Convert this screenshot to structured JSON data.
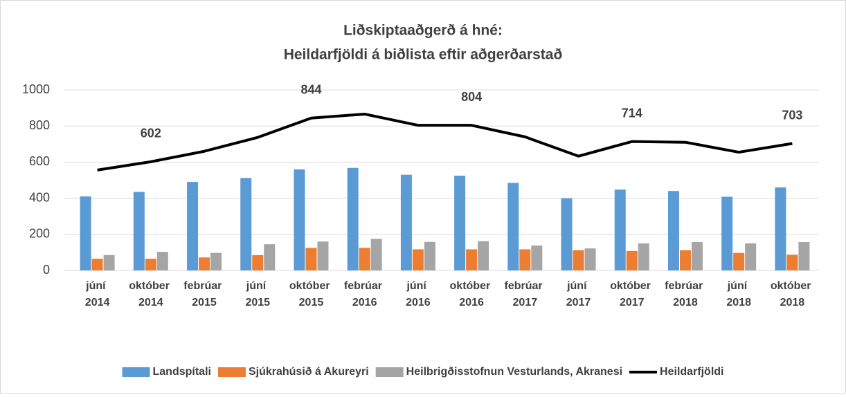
{
  "chart_data": {
    "type": "bar",
    "title": "Liðskiptaaðgerð á hné:",
    "subtitle": "Heildarfjöldi á biðlista eftir aðgerðarstað",
    "categories": [
      "júní 2014",
      "október 2014",
      "febrúar 2015",
      "júní 2015",
      "október 2015",
      "febrúar 2016",
      "júní 2016",
      "október 2016",
      "febrúar 2017",
      "júní 2017",
      "október 2017",
      "febrúar 2018",
      "júní 2018",
      "október 2018"
    ],
    "series": [
      {
        "name": "Landspítali",
        "color": "#5b9bd5",
        "type": "bar",
        "values": [
          410,
          435,
          490,
          512,
          560,
          568,
          530,
          525,
          485,
          400,
          448,
          440,
          408,
          460
        ]
      },
      {
        "name": "Sjúkrahúsið á Akureyri",
        "color": "#ed7d31",
        "type": "bar",
        "values": [
          65,
          65,
          72,
          85,
          125,
          125,
          117,
          117,
          117,
          112,
          108,
          112,
          97,
          87
        ]
      },
      {
        "name": "Heilbrigðisstofnun Vesturlands, Akranesi",
        "color": "#a5a5a5",
        "type": "bar",
        "values": [
          85,
          103,
          97,
          145,
          160,
          175,
          158,
          162,
          138,
          122,
          150,
          157,
          150,
          157
        ]
      },
      {
        "name": "Heildarfjöldi",
        "color": "#000000",
        "type": "line",
        "values": [
          556,
          602,
          660,
          737,
          844,
          866,
          804,
          804,
          740,
          633,
          714,
          710,
          655,
          703
        ],
        "value_labels": [
          null,
          "602",
          null,
          null,
          "844",
          null,
          null,
          "804",
          null,
          null,
          "714",
          null,
          null,
          "703"
        ]
      }
    ],
    "ylim": [
      0,
      1000
    ],
    "yticks": [
      0,
      200,
      400,
      600,
      800,
      1000
    ],
    "grid": true,
    "legend": "bottom"
  }
}
